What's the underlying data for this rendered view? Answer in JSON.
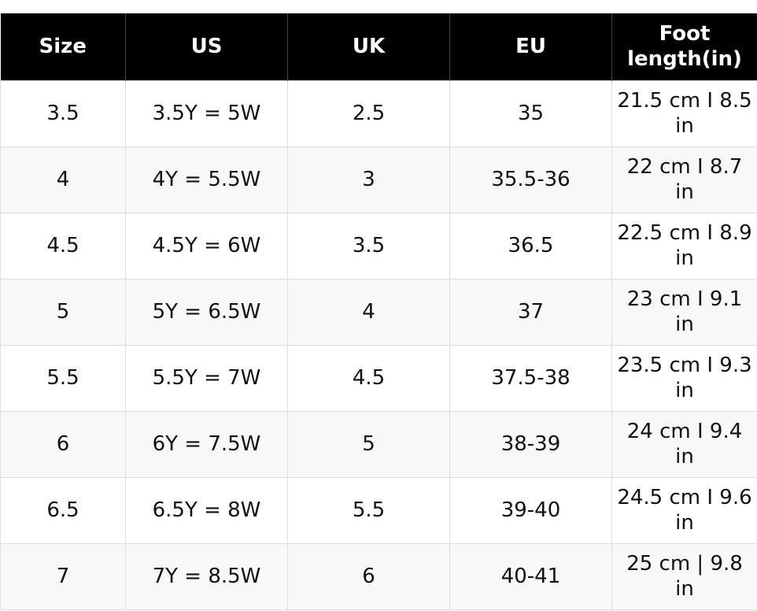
{
  "table": {
    "header": [
      "Size",
      "US",
      "UK",
      "EU",
      "Foot length(in)"
    ],
    "rows": [
      [
        "3.5",
        "3.5Y = 5W",
        "2.5",
        "35",
        "21.5 cm I 8.5 in"
      ],
      [
        "4",
        "4Y = 5.5W",
        "3",
        "35.5-36",
        "22 cm I 8.7 in"
      ],
      [
        "4.5",
        "4.5Y = 6W",
        "3.5",
        "36.5",
        "22.5 cm I 8.9 in"
      ],
      [
        "5",
        "5Y = 6.5W",
        "4",
        "37",
        "23 cm I 9.1 in"
      ],
      [
        "5.5",
        "5.5Y = 7W",
        "4.5",
        "37.5-38",
        "23.5 cm I 9.3 in"
      ],
      [
        "6",
        "6Y = 7.5W",
        "5",
        "38-39",
        "24 cm I 9.4 in"
      ],
      [
        "6.5",
        "6.5Y = 8W",
        "5.5",
        "39-40",
        "24.5 cm I 9.6 in"
      ],
      [
        "7",
        "7Y = 8.5W",
        "6",
        "40-41",
        "25 cm | 9.8 in"
      ]
    ]
  }
}
